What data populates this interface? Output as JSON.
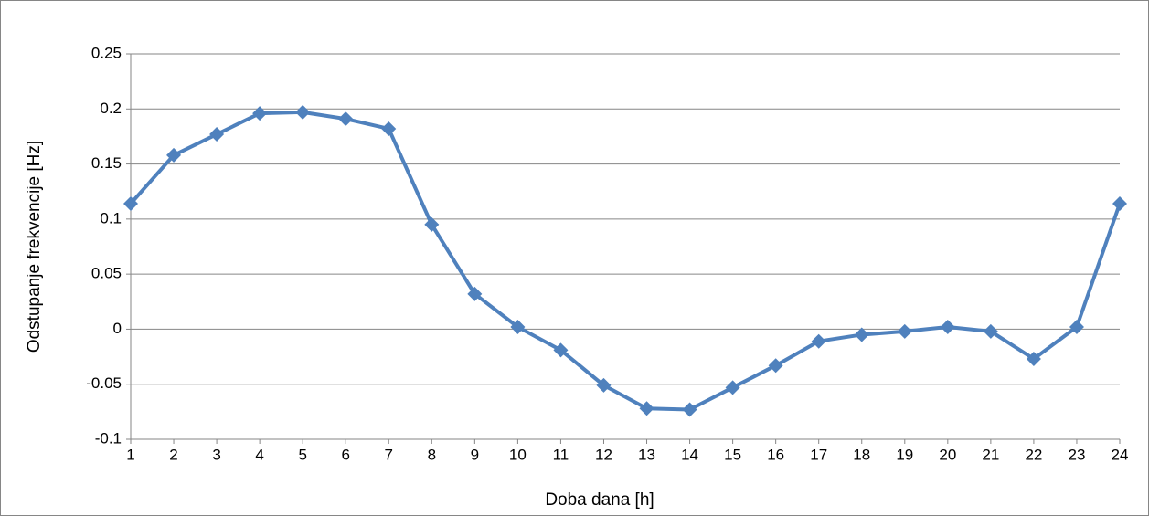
{
  "chart_data": {
    "type": "line",
    "x_label": "Doba dana [h]",
    "y_label": "Odstupanje frekvencije [Hz]",
    "x": [
      1,
      2,
      3,
      4,
      5,
      6,
      7,
      8,
      9,
      10,
      11,
      12,
      13,
      14,
      15,
      16,
      17,
      18,
      19,
      20,
      21,
      22,
      23,
      24
    ],
    "xlim": [
      1,
      24
    ],
    "series": [
      {
        "color": "#4f81bd",
        "values": [
          0.114,
          0.158,
          0.177,
          0.196,
          0.197,
          0.191,
          0.182,
          0.095,
          0.032,
          0.002,
          -0.019,
          -0.051,
          -0.072,
          -0.073,
          -0.053,
          -0.033,
          -0.011,
          -0.005,
          -0.002,
          0.002,
          -0.002,
          -0.027,
          0.002,
          0.114
        ]
      }
    ],
    "ylim": [
      -0.1,
      0.25
    ],
    "yticks": [
      -0.1,
      -0.05,
      0,
      0.05,
      0.1,
      0.15,
      0.2,
      0.25
    ],
    "grid": true
  }
}
